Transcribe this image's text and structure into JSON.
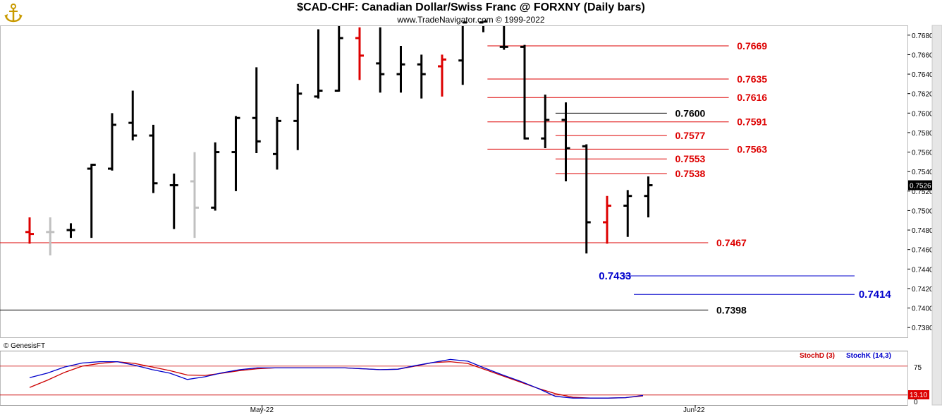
{
  "header": {
    "title": "$CAD-CHF:  Canadian Dollar/Swiss Franc @ FORXNY  (Daily bars)",
    "subtitle": "www.TradeNavigator.com © 1999-2022"
  },
  "footer": {
    "copyright": "© GenesisFT"
  },
  "indicator": {
    "stochd_label": "StochD (3)",
    "stochk_label": "StochK (14,3)",
    "stochd_color": "#cc0000",
    "stochk_color": "#0000cc",
    "current_value": "13.10",
    "y_ticks": [
      "75",
      "0"
    ]
  },
  "logo_icon": "anchor-icon",
  "chart_data": {
    "type": "ohlc",
    "ylim": [
      0.737,
      0.769
    ],
    "y_ticks": [
      0.768,
      0.766,
      0.764,
      0.762,
      0.76,
      0.758,
      0.756,
      0.754,
      0.752,
      0.75,
      0.748,
      0.746,
      0.744,
      0.742,
      0.74,
      0.738
    ],
    "x_labels": [
      {
        "label": "May-22",
        "bar": 11
      },
      {
        "label": "Jun-22",
        "bar": 32
      }
    ],
    "last_price": "0.7526",
    "bars": [
      {
        "h": 0.7493,
        "l": 0.7466,
        "o": 0.7478,
        "c": 0.7476,
        "color": "#dd0000"
      },
      {
        "h": 0.7493,
        "l": 0.7454,
        "o": 0.7478,
        "c": 0.7478,
        "color": "#c0c0c0"
      },
      {
        "h": 0.7487,
        "l": 0.7472,
        "o": 0.748,
        "c": 0.748,
        "color": "#000000"
      },
      {
        "h": 0.7548,
        "l": 0.7472,
        "o": 0.7543,
        "c": 0.7547,
        "color": "#000000"
      },
      {
        "h": 0.76,
        "l": 0.7541,
        "o": 0.7543,
        "c": 0.7588,
        "color": "#000000"
      },
      {
        "h": 0.7623,
        "l": 0.7572,
        "o": 0.759,
        "c": 0.7577,
        "color": "#000000"
      },
      {
        "h": 0.7588,
        "l": 0.7518,
        "o": 0.7577,
        "c": 0.7528,
        "color": "#000000"
      },
      {
        "h": 0.7538,
        "l": 0.7481,
        "o": 0.7526,
        "c": 0.7526,
        "color": "#000000"
      },
      {
        "h": 0.756,
        "l": 0.7472,
        "o": 0.753,
        "c": 0.7503,
        "color": "#c0c0c0"
      },
      {
        "h": 0.757,
        "l": 0.75,
        "o": 0.7503,
        "c": 0.756,
        "color": "#000000"
      },
      {
        "h": 0.7597,
        "l": 0.752,
        "o": 0.756,
        "c": 0.7595,
        "color": "#000000"
      },
      {
        "h": 0.7647,
        "l": 0.7559,
        "o": 0.7595,
        "c": 0.7571,
        "color": "#000000"
      },
      {
        "h": 0.7596,
        "l": 0.7542,
        "o": 0.7558,
        "c": 0.7592,
        "color": "#000000"
      },
      {
        "h": 0.763,
        "l": 0.7562,
        "o": 0.7592,
        "c": 0.762,
        "color": "#000000"
      },
      {
        "h": 0.7686,
        "l": 0.7615,
        "o": 0.7617,
        "c": 0.7623,
        "color": "#000000"
      },
      {
        "h": 0.7691,
        "l": 0.7622,
        "o": 0.7623,
        "c": 0.7677,
        "color": "#000000"
      },
      {
        "h": 0.7688,
        "l": 0.7634,
        "o": 0.7677,
        "c": 0.7659,
        "color": "#dd0000"
      },
      {
        "h": 0.7688,
        "l": 0.7621,
        "o": 0.7651,
        "c": 0.764,
        "color": "#000000"
      },
      {
        "h": 0.7669,
        "l": 0.7621,
        "o": 0.764,
        "c": 0.765,
        "color": "#000000"
      },
      {
        "h": 0.766,
        "l": 0.7615,
        "o": 0.765,
        "c": 0.764,
        "color": "#000000"
      },
      {
        "h": 0.766,
        "l": 0.7617,
        "o": 0.7648,
        "c": 0.7655,
        "color": "#dd0000"
      },
      {
        "h": 0.77,
        "l": 0.7629,
        "o": 0.7654,
        "c": 0.7693,
        "color": "#000000"
      },
      {
        "h": 0.77,
        "l": 0.7683,
        "o": 0.7693,
        "c": 0.7694,
        "color": "#000000"
      },
      {
        "h": 0.77,
        "l": 0.7665,
        "o": 0.7668,
        "c": 0.7668,
        "color": "#000000"
      },
      {
        "h": 0.767,
        "l": 0.7573,
        "o": 0.7668,
        "c": 0.7574,
        "color": "#000000"
      },
      {
        "h": 0.7619,
        "l": 0.7564,
        "o": 0.7574,
        "c": 0.7593,
        "color": "#000000"
      },
      {
        "h": 0.7611,
        "l": 0.753,
        "o": 0.7593,
        "c": 0.7564,
        "color": "#000000"
      },
      {
        "h": 0.7568,
        "l": 0.7456,
        "o": 0.7566,
        "c": 0.7488,
        "color": "#000000"
      },
      {
        "h": 0.7515,
        "l": 0.7466,
        "o": 0.7488,
        "c": 0.7505,
        "color": "#dd0000"
      },
      {
        "h": 0.7521,
        "l": 0.7473,
        "o": 0.7505,
        "c": 0.7515,
        "color": "#000000"
      },
      {
        "h": 0.7535,
        "l": 0.7493,
        "o": 0.7515,
        "c": 0.7526,
        "color": "#000000"
      }
    ],
    "levels": [
      {
        "label": "0.7669",
        "value": 0.7669,
        "color": "#dd0000",
        "line_from_bar": 22.2,
        "line_to_bar": 33.9,
        "label_bar": 34.3,
        "size": "normal"
      },
      {
        "label": "0.7635",
        "value": 0.7635,
        "color": "#dd0000",
        "line_from_bar": 22.2,
        "line_to_bar": 33.9,
        "label_bar": 34.3,
        "size": "normal"
      },
      {
        "label": "0.7616",
        "value": 0.7616,
        "color": "#dd0000",
        "line_from_bar": 22.2,
        "line_to_bar": 33.9,
        "label_bar": 34.3,
        "size": "normal"
      },
      {
        "label": "0.7600",
        "value": 0.76,
        "color": "#000000",
        "line_from_bar": 25.5,
        "line_to_bar": 30.9,
        "label_bar": 31.3,
        "size": "normal"
      },
      {
        "label": "0.7591",
        "value": 0.7591,
        "color": "#dd0000",
        "line_from_bar": 22.2,
        "line_to_bar": 33.9,
        "label_bar": 34.3,
        "size": "normal"
      },
      {
        "label": "0.7577",
        "value": 0.7577,
        "color": "#dd0000",
        "line_from_bar": 25.5,
        "line_to_bar": 30.9,
        "label_bar": 31.3,
        "size": "normal"
      },
      {
        "label": "0.7563",
        "value": 0.7563,
        "color": "#dd0000",
        "line_from_bar": 22.2,
        "line_to_bar": 33.9,
        "label_bar": 34.3,
        "size": "normal"
      },
      {
        "label": "0.7553",
        "value": 0.7553,
        "color": "#dd0000",
        "line_from_bar": 25.5,
        "line_to_bar": 30.9,
        "label_bar": 31.3,
        "size": "normal"
      },
      {
        "label": "0.7538",
        "value": 0.7538,
        "color": "#dd0000",
        "line_from_bar": 25.5,
        "line_to_bar": 30.9,
        "label_bar": 31.3,
        "size": "normal"
      },
      {
        "label": "0.7467",
        "value": 0.7467,
        "color": "#dd0000",
        "line_from_bar": -1.5,
        "line_to_bar": 32.9,
        "label_bar": 33.3,
        "size": "normal"
      },
      {
        "label": "0.7433",
        "value": 0.7433,
        "color": "#0000cc",
        "line_from_bar": 28.8,
        "line_to_bar": 40.0,
        "label_bar": 27.6,
        "size": "large"
      },
      {
        "label": "0.7414",
        "value": 0.7414,
        "color": "#0000cc",
        "line_from_bar": 29.3,
        "line_to_bar": 40.0,
        "label_bar": 40.2,
        "size": "large"
      },
      {
        "label": "0.7398",
        "value": 0.7398,
        "color": "#000000",
        "line_from_bar": -1.5,
        "line_to_bar": 32.9,
        "label_bar": 33.3,
        "size": "normal"
      }
    ],
    "stoch_k": [
      52,
      62,
      76,
      85,
      88,
      88,
      80,
      70,
      62,
      48,
      54,
      63,
      70,
      74,
      74,
      74,
      74,
      74,
      74,
      72,
      70,
      71,
      79,
      86,
      93,
      89,
      73,
      58,
      44,
      28,
      10,
      6,
      6,
      6,
      7,
      12
    ],
    "stoch_d": [
      30,
      46,
      64,
      78,
      84,
      88,
      84,
      76,
      68,
      58,
      57,
      62,
      68,
      72,
      74,
      74,
      74,
      74,
      74,
      72,
      70,
      71,
      78,
      86,
      88,
      84,
      70,
      56,
      42,
      28,
      16,
      8,
      6,
      6,
      7,
      11
    ]
  }
}
